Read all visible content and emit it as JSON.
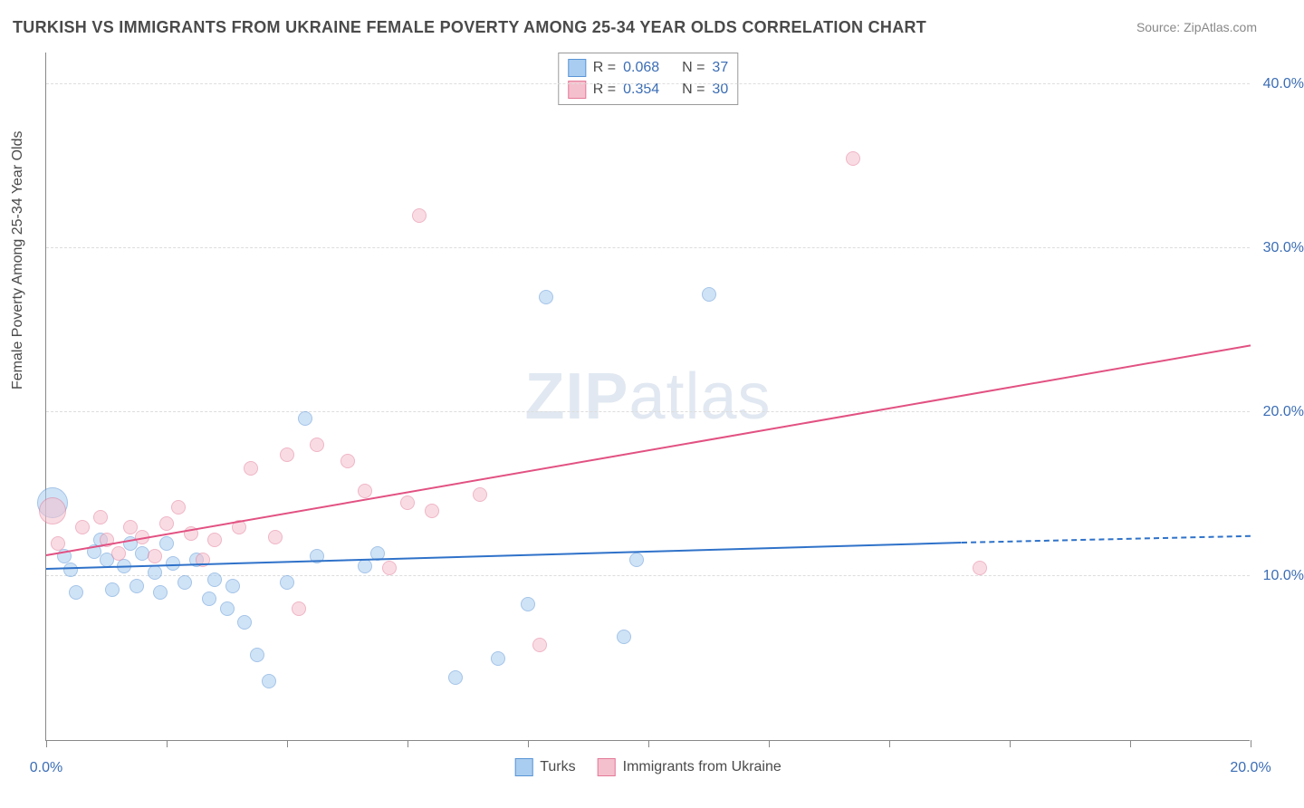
{
  "title": "TURKISH VS IMMIGRANTS FROM UKRAINE FEMALE POVERTY AMONG 25-34 YEAR OLDS CORRELATION CHART",
  "source": "Source: ZipAtlas.com",
  "watermark_bold": "ZIP",
  "watermark_normal": "atlas",
  "y_axis_title": "Female Poverty Among 25-34 Year Olds",
  "chart": {
    "type": "scatter",
    "xlim": [
      0,
      20
    ],
    "ylim": [
      0,
      42
    ],
    "x_ticks": [
      0,
      2,
      4,
      6,
      8,
      10,
      12,
      14,
      16,
      18,
      20
    ],
    "x_tick_labels": {
      "0": "0.0%",
      "20": "20.0%"
    },
    "y_grid": [
      10,
      20,
      30,
      40
    ],
    "y_tick_labels": {
      "10": "10.0%",
      "20": "20.0%",
      "30": "30.0%",
      "40": "40.0%"
    },
    "background_color": "#ffffff",
    "grid_color": "#dddddd",
    "axis_color": "#888888",
    "tick_label_color": "#3b6db5",
    "title_color": "#4a4a4a",
    "title_fontsize": 18,
    "label_fontsize": 16,
    "marker_style": "circle",
    "marker_opacity": 0.55,
    "default_marker_size": 16
  },
  "series": [
    {
      "name": "Turks",
      "color_fill": "#a9cdf0",
      "color_stroke": "#5b95d6",
      "trend_color": "#2f72c9",
      "stats": {
        "R": "0.068",
        "N": "37"
      },
      "trend": {
        "x1": 0,
        "y1": 10.4,
        "x2_solid": 15.2,
        "y2_solid": 12.0,
        "x2": 20,
        "y2": 12.4
      },
      "points": [
        {
          "x": 0.1,
          "y": 14.5,
          "size": 34
        },
        {
          "x": 0.3,
          "y": 11.2
        },
        {
          "x": 0.4,
          "y": 10.4
        },
        {
          "x": 0.5,
          "y": 9.0
        },
        {
          "x": 0.8,
          "y": 11.5
        },
        {
          "x": 0.9,
          "y": 12.2
        },
        {
          "x": 1.0,
          "y": 11.0
        },
        {
          "x": 1.1,
          "y": 9.2
        },
        {
          "x": 1.3,
          "y": 10.6
        },
        {
          "x": 1.4,
          "y": 12.0
        },
        {
          "x": 1.5,
          "y": 9.4
        },
        {
          "x": 1.6,
          "y": 11.4
        },
        {
          "x": 1.8,
          "y": 10.2
        },
        {
          "x": 1.9,
          "y": 9.0
        },
        {
          "x": 2.0,
          "y": 12.0
        },
        {
          "x": 2.1,
          "y": 10.8
        },
        {
          "x": 2.3,
          "y": 9.6
        },
        {
          "x": 2.5,
          "y": 11.0
        },
        {
          "x": 2.7,
          "y": 8.6
        },
        {
          "x": 2.8,
          "y": 9.8
        },
        {
          "x": 3.0,
          "y": 8.0
        },
        {
          "x": 3.1,
          "y": 9.4
        },
        {
          "x": 3.3,
          "y": 7.2
        },
        {
          "x": 3.5,
          "y": 5.2
        },
        {
          "x": 3.7,
          "y": 3.6
        },
        {
          "x": 4.0,
          "y": 9.6
        },
        {
          "x": 4.3,
          "y": 19.6
        },
        {
          "x": 4.5,
          "y": 11.2
        },
        {
          "x": 5.3,
          "y": 10.6
        },
        {
          "x": 5.5,
          "y": 11.4
        },
        {
          "x": 6.8,
          "y": 3.8
        },
        {
          "x": 7.5,
          "y": 5.0
        },
        {
          "x": 8.0,
          "y": 8.3
        },
        {
          "x": 8.3,
          "y": 27.0
        },
        {
          "x": 9.6,
          "y": 6.3
        },
        {
          "x": 11.0,
          "y": 27.2
        },
        {
          "x": 9.8,
          "y": 11.0
        }
      ]
    },
    {
      "name": "Immigrants from Ukraine",
      "color_fill": "#f5c0cd",
      "color_stroke": "#e37a99",
      "trend_color": "#e25182",
      "stats": {
        "R": "0.354",
        "N": "30"
      },
      "trend": {
        "x1": 0,
        "y1": 11.2,
        "x2_solid": 20,
        "y2_solid": 24.0,
        "x2": 20,
        "y2": 24.0
      },
      "points": [
        {
          "x": 0.1,
          "y": 14.0,
          "size": 30
        },
        {
          "x": 0.2,
          "y": 12.0
        },
        {
          "x": 0.6,
          "y": 13.0
        },
        {
          "x": 0.9,
          "y": 13.6
        },
        {
          "x": 1.0,
          "y": 12.2
        },
        {
          "x": 1.2,
          "y": 11.4
        },
        {
          "x": 1.4,
          "y": 13.0
        },
        {
          "x": 1.6,
          "y": 12.4
        },
        {
          "x": 1.8,
          "y": 11.2
        },
        {
          "x": 2.0,
          "y": 13.2
        },
        {
          "x": 2.2,
          "y": 14.2
        },
        {
          "x": 2.4,
          "y": 12.6
        },
        {
          "x": 2.6,
          "y": 11.0
        },
        {
          "x": 2.8,
          "y": 12.2
        },
        {
          "x": 3.2,
          "y": 13.0
        },
        {
          "x": 3.4,
          "y": 16.6
        },
        {
          "x": 3.8,
          "y": 12.4
        },
        {
          "x": 4.0,
          "y": 17.4
        },
        {
          "x": 4.2,
          "y": 8.0
        },
        {
          "x": 4.5,
          "y": 18.0
        },
        {
          "x": 5.0,
          "y": 17.0
        },
        {
          "x": 5.3,
          "y": 15.2
        },
        {
          "x": 5.7,
          "y": 10.5
        },
        {
          "x": 6.0,
          "y": 14.5
        },
        {
          "x": 6.2,
          "y": 32.0
        },
        {
          "x": 6.4,
          "y": 14.0
        },
        {
          "x": 7.2,
          "y": 15.0
        },
        {
          "x": 8.2,
          "y": 5.8
        },
        {
          "x": 13.4,
          "y": 35.5
        },
        {
          "x": 15.5,
          "y": 10.5
        }
      ]
    }
  ],
  "legend_stats_labels": {
    "R": "R =",
    "N": "N ="
  },
  "legend_series_title": ""
}
